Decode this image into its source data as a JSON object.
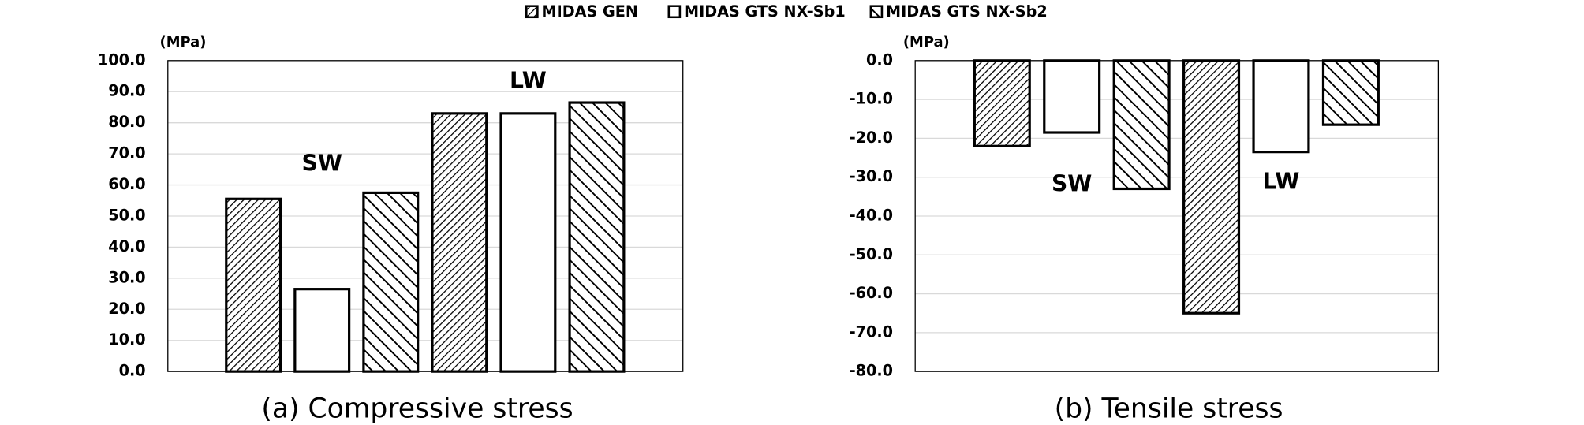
{
  "chart_data": [
    {
      "type": "bar",
      "title": "(a) Compressive stress",
      "y_label": "(MPa)",
      "categories": [
        "SW",
        "LW"
      ],
      "series": [
        {
          "name": "MIDAS GEN",
          "pattern": "forward-hatch",
          "values": [
            55.5,
            83
          ]
        },
        {
          "name": "MIDAS GTS NX-Sb1",
          "pattern": "none",
          "values": [
            26.5,
            83
          ]
        },
        {
          "name": "MIDAS GTS NX-Sb2",
          "pattern": "back-hatch",
          "values": [
            57.5,
            86.5
          ]
        }
      ],
      "ylim": [
        0,
        100
      ],
      "yticks": [
        {
          "value": 0,
          "label": "0.0"
        },
        {
          "value": 10,
          "label": "10.0"
        },
        {
          "value": 20,
          "label": "20.0"
        },
        {
          "value": 30,
          "label": "30.0"
        },
        {
          "value": 40,
          "label": "40.0"
        },
        {
          "value": 50,
          "label": "50.0"
        },
        {
          "value": 60,
          "label": "60.0"
        },
        {
          "value": 70,
          "label": "70.0"
        },
        {
          "value": 80,
          "label": "80.0"
        },
        {
          "value": 90,
          "label": "90.0"
        },
        {
          "value": 100,
          "label": "100.0"
        }
      ],
      "grid": true
    },
    {
      "type": "bar",
      "title": "(b) Tensile stress",
      "y_label": "(MPa)",
      "categories": [
        "SW",
        "LW"
      ],
      "series": [
        {
          "pattern": "forward-hatch",
          "values": [
            -22,
            -65
          ]
        },
        {
          "pattern": "none",
          "values": [
            -18.5,
            -23.5
          ]
        },
        {
          "pattern": "back-hatch",
          "values": [
            -33,
            -16.5
          ]
        }
      ],
      "ylim": [
        -80,
        0
      ],
      "yticks": [
        {
          "value": 0,
          "label": "0.0"
        },
        {
          "value": -10,
          "label": "-10.0"
        },
        {
          "value": -20,
          "label": "-20.0"
        },
        {
          "value": -30,
          "label": "-30.0"
        },
        {
          "value": -40,
          "label": "-40.0"
        },
        {
          "value": -50,
          "label": "-50.0"
        },
        {
          "value": -60,
          "label": "-60.0"
        },
        {
          "value": -70,
          "label": "-70.0"
        },
        {
          "value": -80,
          "label": "-80.0"
        }
      ],
      "grid": true
    }
  ]
}
